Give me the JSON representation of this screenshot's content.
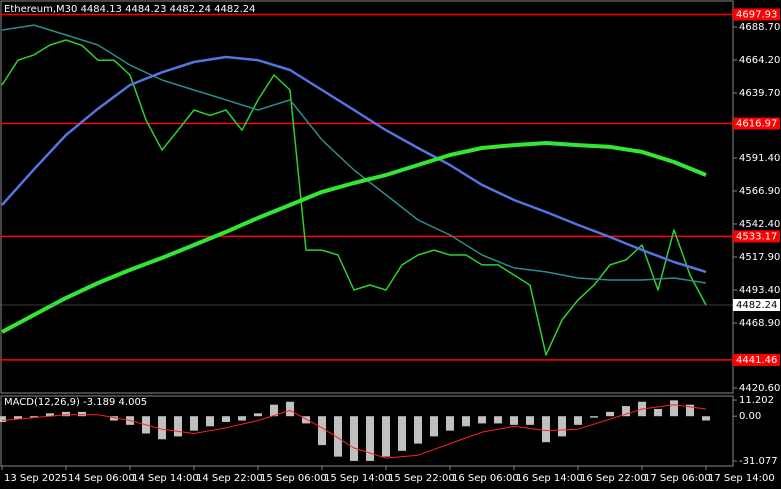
{
  "chart_data": [
    {
      "type": "line",
      "title": "Ethereum,M30  4484.13 4484.23 4482.24 4482.24",
      "ylim": [
        4416.9,
        4708.7
      ],
      "yticks": [
        {
          "value": 4688.7,
          "label": "4688.70"
        },
        {
          "value": 4664.2,
          "label": "4664.20"
        },
        {
          "value": 4639.7,
          "label": "4639.70"
        },
        {
          "value": 4591.4,
          "label": "4591.40"
        },
        {
          "value": 4566.9,
          "label": "4566.90"
        },
        {
          "value": 4542.4,
          "label": "4542.40"
        },
        {
          "value": 4517.9,
          "label": "4517.90"
        },
        {
          "value": 4493.4,
          "label": "4493.40"
        },
        {
          "value": 4468.9,
          "label": "4468.90"
        },
        {
          "value": 4420.6,
          "label": "4420.60"
        }
      ],
      "x_labels": [
        "13 Sep 2025",
        "14 Sep 06:00",
        "14 Sep 14:00",
        "14 Sep 22:00",
        "15 Sep 06:00",
        "15 Sep 14:00",
        "15 Sep 22:00",
        "16 Sep 06:00",
        "16 Sep 14:00",
        "16 Sep 22:00",
        "17 Sep 06:00",
        "17 Sep 14:00"
      ],
      "levels": [
        {
          "value": 4697.93,
          "color": "#ff0000"
        },
        {
          "value": 4616.97,
          "color": "#ff0000"
        },
        {
          "value": 4533.17,
          "color": "#ff0000"
        },
        {
          "value": 4441.46,
          "color": "#ff0000"
        }
      ],
      "series": [
        {
          "color": "#2fd02f",
          "width": 1.5,
          "values": [
            4645.6,
            4664,
            4667.9,
            4675.3,
            4679,
            4675,
            4664,
            4664,
            4653,
            4619.6,
            4597.3,
            4612,
            4627,
            4623,
            4627,
            4612,
            4634.5,
            4653,
            4641.9,
            4523,
            4523,
            4519.4,
            4493.4,
            4497.1,
            4493.4,
            4512,
            4519.4,
            4523,
            4519.4,
            4519.4,
            4512,
            4512,
            4504.5,
            4497,
            4445.2,
            4471.1,
            4486,
            4497,
            4512,
            4515.7,
            4526.8,
            4493.4,
            4538,
            4504.5,
            4482.24
          ]
        },
        {
          "color": "#2e8b8b",
          "width": 1.5,
          "values": [
            4686.4,
            4690.1,
            4682.7,
            4675.3,
            4660.4,
            4649.3,
            4641.9,
            4634.5,
            4627,
            4634.5,
            4604.8,
            4582.5,
            4564,
            4545.4,
            4534.2,
            4519.4,
            4509.8,
            4506.8,
            4502.3,
            4500.8,
            4500.8,
            4502.3,
            4498.6
          ]
        },
        {
          "color": "#5574e0",
          "width": 2.5,
          "values": [
            4556.5,
            4583,
            4608.5,
            4628,
            4645.6,
            4655,
            4662.7,
            4666.4,
            4664,
            4656.7,
            4641.9,
            4627,
            4612,
            4598.8,
            4586.2,
            4571.4,
            4560.2,
            4551.3,
            4541.7,
            4532.7,
            4523.1,
            4514.2,
            4506.8
          ]
        },
        {
          "color": "#32e632",
          "width": 4,
          "values": [
            4462.2,
            4474.9,
            4487.5,
            4498.6,
            4508.3,
            4517.2,
            4526.8,
            4536.5,
            4546.9,
            4556.5,
            4566.2,
            4572.8,
            4578.8,
            4586.2,
            4593.6,
            4598.8,
            4601,
            4602.5,
            4601,
            4599.6,
            4595.9,
            4588.4,
            4578.8
          ]
        }
      ]
    },
    {
      "type": "macd",
      "title": "MACD(12,26,9) -3.189 4.005",
      "ylim": [
        -34.5,
        14
      ],
      "yticks": [
        11.202,
        {
          "value": 0,
          "label": "0.00"
        },
        -31.077
      ],
      "histogram": {
        "color": "#c0c0c0",
        "values": [
          -4,
          -2,
          -1,
          2,
          3,
          3,
          0,
          -3,
          -6,
          -12,
          -16,
          -14,
          -10,
          -7,
          -4,
          -3,
          2,
          8,
          10,
          -5,
          -20,
          -28,
          -31,
          -31,
          -28,
          -24,
          -19,
          -14,
          -10,
          -7,
          -5,
          -5,
          -6,
          -6,
          -18,
          -14,
          -6,
          -1,
          3,
          7,
          10,
          5,
          11,
          8,
          -3
        ]
      },
      "signal": {
        "color": "#ff2020",
        "values": [
          -3,
          -1,
          1,
          1,
          -3,
          -9,
          -12,
          -8,
          -3,
          4,
          -8,
          -22,
          -29,
          -27,
          -19,
          -11,
          -7,
          -10,
          -9,
          -2,
          5,
          8,
          5
        ]
      }
    }
  ]
}
